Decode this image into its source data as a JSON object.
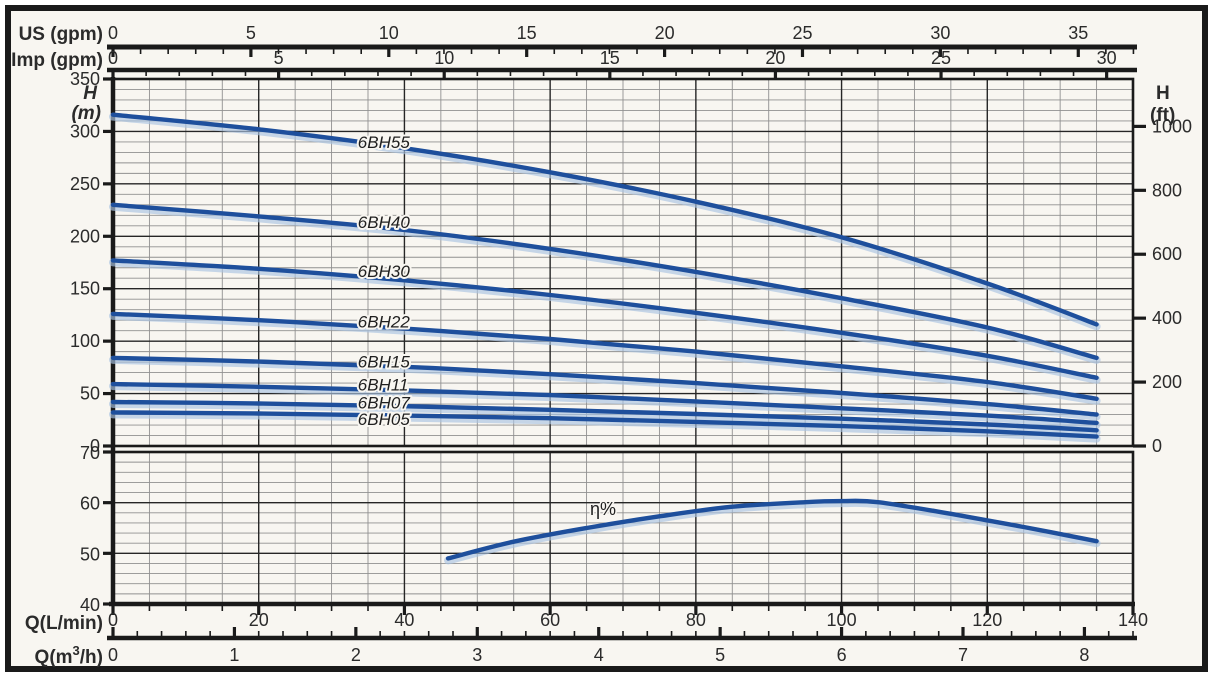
{
  "axes_titles": {
    "us": "US (gpm)",
    "imp": "Imp (gpm)",
    "h": "H",
    "m_unit": "(m)",
    "ft_unit": "(ft)",
    "q_lmin": "Q(L/min)",
    "q_m3h_prefix": "Q(m",
    "q_m3h_sup": "3",
    "q_m3h_suffix": "/h)"
  },
  "chart_data": {
    "type": "line",
    "x_axes": [
      {
        "id": "us",
        "label": "US (gpm)",
        "major_tick_labels": [
          0,
          5,
          10,
          15,
          20,
          25,
          30,
          35
        ],
        "minor_step": 1,
        "lmin_per_unit": 3.78541
      },
      {
        "id": "imp",
        "label": "Imp (gpm)",
        "major_tick_labels": [
          0,
          5,
          10,
          15,
          20,
          25,
          30
        ],
        "minor_step": 1,
        "lmin_per_unit": 4.54609
      },
      {
        "id": "lmin",
        "label": "Q(L/min)",
        "major_tick_labels": [
          0,
          20,
          40,
          60,
          80,
          100,
          120,
          140
        ],
        "minor_step": 5,
        "lmin_per_unit": 1
      },
      {
        "id": "m3h",
        "label": "Q(m³/h)",
        "major_tick_labels": [
          0,
          1,
          2,
          3,
          4,
          5,
          6,
          7,
          8
        ],
        "minor_step": 0.2,
        "lmin_per_unit": 16.6667
      }
    ],
    "head_panel": {
      "ylabel_left": "H (m)",
      "ylim_m": [
        0,
        350
      ],
      "y_major_step": 50,
      "y_minor_step": 10,
      "x_major_step": 20,
      "x_minor_step": 5,
      "left_tick_labels": [
        350,
        300,
        250,
        200,
        150,
        100,
        50,
        0
      ],
      "ylabel_right": "H (ft)",
      "right_tick_labels": [
        1000,
        800,
        600,
        400,
        200,
        0
      ],
      "ft_per_m": 3.28084,
      "label_q": 33.6,
      "q_lmin": [
        0,
        20,
        40,
        60,
        80,
        100,
        120,
        135
      ],
      "series": [
        {
          "name": "6BH55",
          "h_m": [
            316,
            302,
            284,
            261,
            233,
            199,
            155,
            116
          ],
          "label_h": 284
        },
        {
          "name": "6BH40",
          "h_m": [
            230,
            219,
            206,
            188,
            166,
            141,
            113,
            84
          ],
          "label_h": 208
        },
        {
          "name": "6BH30",
          "h_m": [
            177,
            169,
            158,
            144,
            127,
            108,
            86,
            65
          ],
          "label_h": 161
        },
        {
          "name": "6BH22",
          "h_m": [
            126,
            120,
            112,
            102,
            90,
            76,
            61,
            45
          ],
          "label_h": 113
        },
        {
          "name": "6BH15",
          "h_m": [
            84,
            80.5,
            75.5,
            68.5,
            60,
            50.5,
            40,
            30
          ],
          "label_h": 75
        },
        {
          "name": "6BH11",
          "h_m": [
            59,
            56.5,
            53,
            48.5,
            42.5,
            36,
            29,
            22
          ],
          "label_h": 53
        },
        {
          "name": "6BH07",
          "h_m": [
            42,
            40.5,
            38,
            34.5,
            30.5,
            26,
            20.5,
            15
          ],
          "label_h": 36
        },
        {
          "name": "6BH05",
          "h_m": [
            32,
            31,
            29,
            26.5,
            23,
            19,
            14,
            9
          ],
          "label_h": 20
        }
      ]
    },
    "efficiency_panel": {
      "ylabel": "η%",
      "ylim": [
        40,
        70
      ],
      "y_major_step": 10,
      "y_minor_step": 2,
      "left_tick_labels": [
        70,
        60,
        50,
        40
      ],
      "series": [
        {
          "name": "η%",
          "q_lmin": [
            46,
            55,
            65,
            75,
            85,
            95,
            100,
            105,
            115,
            125,
            135
          ],
          "eta": [
            49,
            52.3,
            55,
            57.3,
            59.2,
            60.1,
            60.3,
            60.1,
            57.8,
            55.2,
            52.4
          ]
        }
      ]
    },
    "colors": {
      "curve": "#1e4f9c",
      "curve_halo": "#a9c3e2",
      "grid_minor": "#909090",
      "grid_major": "#262626",
      "background": "#f8f6f1",
      "frame": "#1a1a1a",
      "text": "#2b2b2b"
    }
  }
}
